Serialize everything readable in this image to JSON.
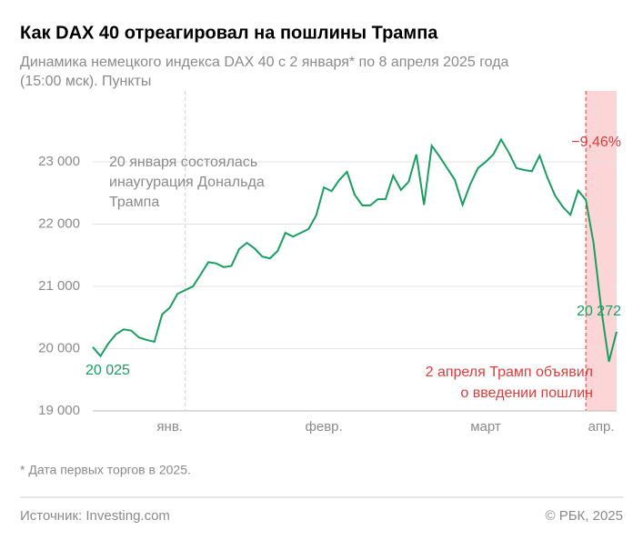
{
  "chart_data": {
    "type": "line",
    "title": "Как DAX 40 отреагировал на пошлины Трампа",
    "subtitle": [
      "Динамика немецкого индекса DAX 40 с 2 января* по 8 апреля 2025 года",
      "(15:00 мск). Пункты"
    ],
    "categories": [
      null,
      null,
      null,
      null,
      null,
      null,
      null,
      null,
      null,
      null,
      "янв.",
      null,
      null,
      null,
      null,
      null,
      null,
      null,
      null,
      null,
      null,
      null,
      null,
      null,
      null,
      null,
      null,
      null,
      null,
      null,
      "февр.",
      null,
      null,
      null,
      null,
      null,
      null,
      null,
      null,
      null,
      null,
      null,
      null,
      null,
      null,
      null,
      null,
      null,
      null,
      null,
      null,
      "март",
      null,
      null,
      null,
      null,
      null,
      null,
      null,
      null,
      null,
      null,
      null,
      null,
      null,
      null,
      "апр.",
      null,
      null
    ],
    "series": [
      {
        "name": "DAX 40",
        "color": "#1a9e5f",
        "values": [
          20025,
          19880,
          20080,
          20230,
          20310,
          20290,
          20180,
          20140,
          20110,
          20550,
          20660,
          20880,
          20940,
          21000,
          21190,
          21390,
          21370,
          21310,
          21330,
          21600,
          21700,
          21610,
          21480,
          21450,
          21570,
          21860,
          21800,
          21860,
          21920,
          22140,
          22590,
          22530,
          22710,
          22840,
          22470,
          22300,
          22300,
          22400,
          22400,
          22780,
          22550,
          22680,
          23120,
          22310,
          23260,
          23090,
          22900,
          22710,
          22310,
          22640,
          22900,
          23000,
          23120,
          23360,
          23150,
          22900,
          22870,
          22850,
          23100,
          22750,
          22460,
          22280,
          22150,
          22540,
          22390,
          21700,
          20640,
          19790,
          20272
        ],
        "value_labels": [
          "20 025",
          null,
          null,
          null,
          null,
          null,
          null,
          null,
          null,
          null,
          null,
          null,
          null,
          null,
          null,
          null,
          null,
          null,
          null,
          null,
          null,
          null,
          null,
          null,
          null,
          null,
          null,
          null,
          null,
          null,
          null,
          null,
          null,
          null,
          null,
          null,
          null,
          null,
          null,
          null,
          null,
          null,
          null,
          null,
          null,
          null,
          null,
          null,
          null,
          null,
          null,
          null,
          null,
          null,
          null,
          null,
          null,
          null,
          null,
          null,
          null,
          null,
          null,
          null,
          null,
          null,
          null,
          null,
          "20 272"
        ]
      }
    ],
    "ylim": [
      19000,
      24140
    ],
    "yticks": [
      {
        "value": 19000,
        "label": "19 000"
      },
      {
        "value": 20000,
        "label": "20 000"
      },
      {
        "value": 21000,
        "label": "21 000"
      },
      {
        "value": 22000,
        "label": "22 000"
      },
      {
        "value": 23000,
        "label": "23 000"
      }
    ],
    "grid": true,
    "annotations": [
      {
        "lines": [
          "20 января состоялась",
          "инаугурация Дональда",
          "Трампа"
        ]
      },
      {
        "lines": [
          "2 апреля Трамп объявил",
          "о введении пошлин"
        ]
      },
      {
        "text": "−9,46%"
      }
    ],
    "note": "* Дата первых торгов в 2025.",
    "source": "Источник: Investing.com",
    "copyright": "© РБК, 2025"
  }
}
